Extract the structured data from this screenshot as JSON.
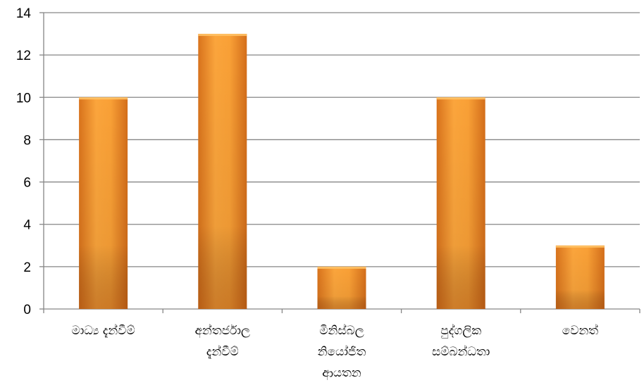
{
  "chart_data": {
    "type": "bar",
    "title": "",
    "xlabel": "",
    "ylabel": "",
    "categories": [
      [
        "මාධ්‍ය දැන්වීම්"
      ],
      [
        "අන්තර්ජාල",
        "දැන්වීම්"
      ],
      [
        "මිනිස්බල",
        "නියෝජිත",
        "ආයතන"
      ],
      [
        "පුද්ගලික",
        "සම්බන්ධතා"
      ],
      [
        "වෙනත්"
      ]
    ],
    "values": [
      10,
      13,
      2,
      10,
      3
    ],
    "ylim": [
      0,
      14
    ],
    "yticks": [
      0,
      2,
      4,
      6,
      8,
      10,
      12,
      14
    ],
    "grid": true,
    "legend": "none",
    "colors": {
      "bar_light": "#fbb14a",
      "bar_mid": "#f7941d",
      "bar_dark": "#c8641a",
      "grid": "#868686",
      "axis": "#868686"
    }
  }
}
